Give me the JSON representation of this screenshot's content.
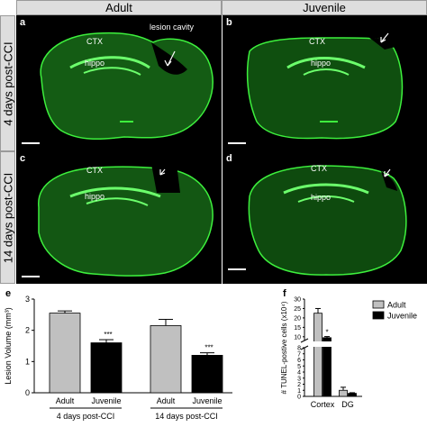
{
  "columns": {
    "adult": "Adult",
    "juvenile": "Juvenile"
  },
  "rows": {
    "day4": "4 days post-CCI",
    "day14": "14 days post-CCI"
  },
  "panels": {
    "a": {
      "letter": "a",
      "ctx": "CTX",
      "hippo": "hippo",
      "lesion": "lesion cavity"
    },
    "b": {
      "letter": "b",
      "ctx": "CTX",
      "hippo": "hippo"
    },
    "c": {
      "letter": "c",
      "ctx": "CTX",
      "hippo": "hippo"
    },
    "d": {
      "letter": "d",
      "ctx": "CTX",
      "hippo": "hippo"
    }
  },
  "colors": {
    "fluor": "#2fe62f",
    "adult_bar": "#c0c0c0",
    "juvenile_bar": "#000000",
    "header_bg": "#dedede"
  },
  "chart_data": [
    {
      "id": "e",
      "label": "e",
      "type": "bar",
      "ylabel": "Lesion Volume (mm³)",
      "ylim": [
        0,
        3
      ],
      "yticks": [
        "0",
        "1",
        "2",
        "3"
      ],
      "categories": [
        "Adult",
        "Juvenile",
        "Adult",
        "Juvenile"
      ],
      "groups": [
        "4 days post-CCI",
        "14 days post-CCI"
      ],
      "values": [
        2.55,
        1.6,
        2.15,
        1.2
      ],
      "errors": [
        0.07,
        0.1,
        0.2,
        0.08
      ],
      "significance": [
        "",
        "***",
        "",
        "***"
      ]
    },
    {
      "id": "f",
      "label": "f",
      "type": "bar",
      "ylabel": "# TUNEL-postive cells (x10⁴)",
      "yticks": [
        "0",
        "1",
        "2",
        "3",
        "4",
        "5",
        "6",
        "7",
        "8",
        "10",
        "15",
        "20",
        "25",
        "30"
      ],
      "categories": [
        "Cortex",
        "DG"
      ],
      "legend": [
        "Adult",
        "Juvenile"
      ],
      "legend_position": "top-right",
      "series": [
        {
          "name": "Adult",
          "values": [
            22.5,
            1.0
          ],
          "errors": [
            2.5,
            0.5
          ]
        },
        {
          "name": "Juvenile",
          "values": [
            9.5,
            0.5
          ],
          "errors": [
            0.6,
            0.1
          ]
        }
      ],
      "significance": [
        "*",
        ""
      ],
      "axis_break": true
    }
  ]
}
